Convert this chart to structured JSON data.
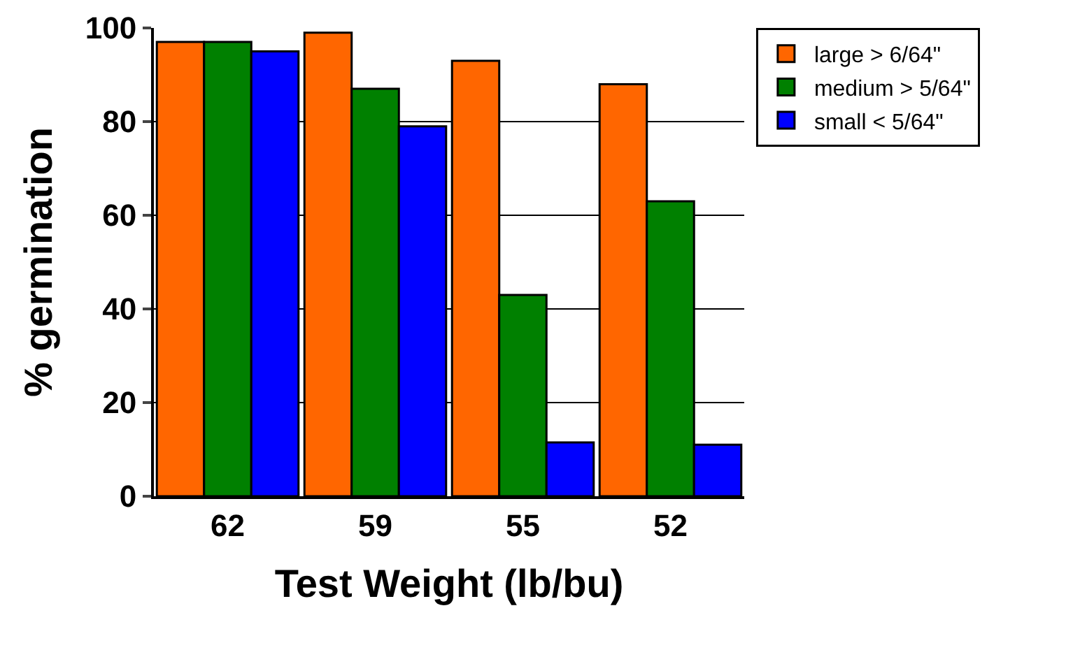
{
  "chart_data": {
    "type": "bar",
    "xlabel": "Test Weight (lb/bu)",
    "ylabel": "% germination",
    "categories": [
      "62",
      "59",
      "55",
      "52"
    ],
    "series": [
      {
        "name": "large > 6/64\"",
        "color": "#ff6600",
        "values": [
          97,
          99,
          93,
          88
        ]
      },
      {
        "name": "medium > 5/64\"",
        "color": "#008000",
        "values": [
          97,
          87,
          43,
          63
        ]
      },
      {
        "name": "small < 5/64\"",
        "color": "#0000ff",
        "values": [
          95,
          79,
          11.5,
          11
        ]
      }
    ],
    "ylim": [
      0,
      100
    ],
    "yticks": [
      0,
      20,
      40,
      60,
      80,
      100
    ],
    "grid": "y",
    "legend": "top right"
  }
}
